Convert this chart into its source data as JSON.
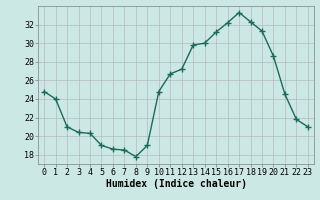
{
  "x": [
    0,
    1,
    2,
    3,
    4,
    5,
    6,
    7,
    8,
    9,
    10,
    11,
    12,
    13,
    14,
    15,
    16,
    17,
    18,
    19,
    20,
    21,
    22,
    23
  ],
  "y": [
    24.8,
    24.0,
    21.0,
    20.4,
    20.3,
    19.0,
    18.6,
    18.5,
    17.8,
    19.0,
    24.8,
    26.7,
    27.2,
    29.8,
    30.0,
    31.2,
    32.2,
    33.3,
    32.3,
    31.3,
    28.6,
    24.5,
    21.8,
    21.0
  ],
  "line_color": "#1a6b5a",
  "marker": "+",
  "marker_size": 4,
  "marker_color": "#1a6b5a",
  "bg_color": "#cce8e4",
  "xlabel": "Humidex (Indice chaleur)",
  "xlabel_fontsize": 7,
  "xlabel_fontweight": "bold",
  "tick_fontsize": 6,
  "ylim": [
    17,
    34
  ],
  "xlim": [
    -0.5,
    23.5
  ],
  "yticks": [
    18,
    20,
    22,
    24,
    26,
    28,
    30,
    32
  ],
  "xticks": [
    0,
    1,
    2,
    3,
    4,
    5,
    6,
    7,
    8,
    9,
    10,
    11,
    12,
    13,
    14,
    15,
    16,
    17,
    18,
    19,
    20,
    21,
    22,
    23
  ],
  "grid_color": "#b0b0b0",
  "line_width": 1.0,
  "spine_color": "#808080"
}
